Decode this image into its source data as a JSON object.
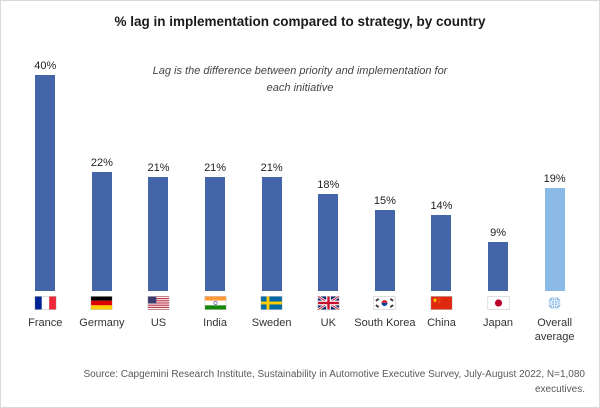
{
  "chart_data": {
    "type": "bar",
    "title": "% lag in implementation compared to strategy, by country",
    "annotation": "Lag is the difference between priority and implementation for each initiative",
    "categories": [
      "France",
      "Germany",
      "US",
      "India",
      "Sweden",
      "UK",
      "South Korea",
      "China",
      "Japan",
      "Overall average"
    ],
    "label_lines": [
      [
        "France"
      ],
      [
        "Germany"
      ],
      [
        "US"
      ],
      [
        "India"
      ],
      [
        "Sweden"
      ],
      [
        "UK"
      ],
      [
        "South Korea"
      ],
      [
        "China"
      ],
      [
        "Japan"
      ],
      [
        "Overall",
        "average"
      ]
    ],
    "values": [
      40,
      22,
      21,
      21,
      21,
      18,
      15,
      14,
      9,
      19
    ],
    "value_suffix": "%",
    "flags": [
      "flag-france",
      "flag-germany",
      "flag-us",
      "flag-india",
      "flag-sweden",
      "flag-uk",
      "flag-south-korea",
      "flag-china",
      "flag-japan",
      "globe"
    ],
    "bar_color": "#4466A9",
    "highlight_color": "#8BBAE7",
    "highlight_index": 9,
    "ylim": [
      0,
      42
    ],
    "xlabel": "",
    "ylabel": "",
    "grid": false,
    "legend": "none"
  },
  "footer": {
    "source": "Source: Capgemini Research Institute, Sustainability in Automotive Executive Survey, July-August 2022, N=1,080 executives."
  }
}
